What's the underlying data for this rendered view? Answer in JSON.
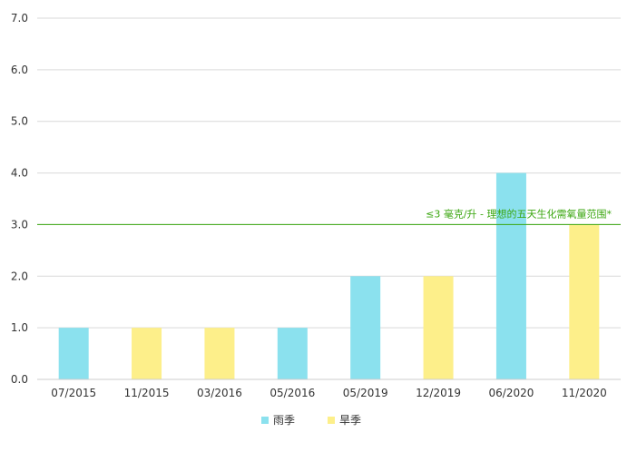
{
  "chart_data": {
    "type": "bar",
    "categories": [
      "07/2015",
      "11/2015",
      "03/2016",
      "05/2016",
      "05/2019",
      "12/2019",
      "06/2020",
      "11/2020"
    ],
    "values": [
      1.0,
      1.0,
      1.0,
      1.0,
      2.0,
      2.0,
      4.0,
      3.0
    ],
    "bar_series": [
      "雨季",
      "旱季",
      "旱季",
      "雨季",
      "雨季",
      "旱季",
      "雨季",
      "旱季"
    ],
    "series": [
      {
        "name": "雨季",
        "color": "#8be1ee"
      },
      {
        "name": "旱季",
        "color": "#fdef8a"
      }
    ],
    "ylim": [
      0,
      7
    ],
    "y_ticks": [
      "0.0",
      "1.0",
      "2.0",
      "3.0",
      "4.0",
      "5.0",
      "6.0",
      "7.0"
    ],
    "grid": true,
    "legend_position": "bottom-center",
    "reference_line": {
      "value": 3.0,
      "label": "≤3 毫克/升 - 理想的五天生化需氧量范围*",
      "color": "#3aa60f"
    }
  }
}
